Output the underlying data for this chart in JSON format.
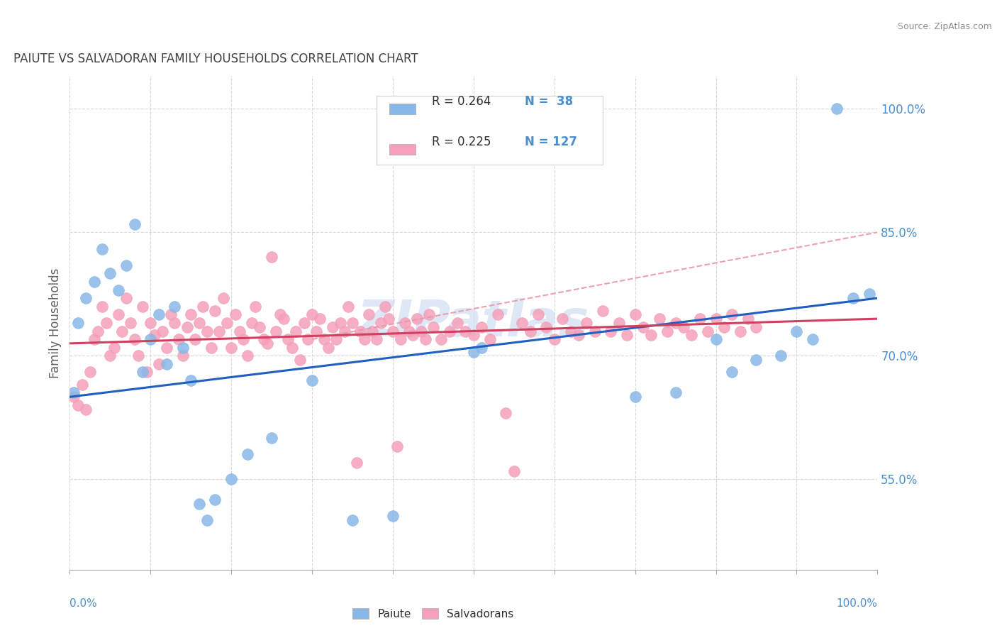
{
  "title": "PAIUTE VS SALVADORAN FAMILY HOUSEHOLDS CORRELATION CHART",
  "source": "Source: ZipAtlas.com",
  "ylabel": "Family Households",
  "yaxis_ticks": [
    55.0,
    70.0,
    85.0,
    100.0
  ],
  "xaxis_range": [
    0.0,
    100.0
  ],
  "yaxis_range": [
    44.0,
    104.0
  ],
  "watermark": "ZIPatlas",
  "paiute_color": "#88b8e8",
  "paiute_edge_color": "#88b8e8",
  "salvadoran_color": "#f4a0b8",
  "salvadoran_edge_color": "#f4a0b8",
  "paiute_line_color": "#2060c0",
  "salvadoran_line_color": "#d04060",
  "dashed_line_color": "#e898a8",
  "background_color": "#ffffff",
  "grid_color": "#d8d8d8",
  "title_color": "#404040",
  "source_color": "#909090",
  "axis_tick_color": "#4a90d0",
  "ylabel_color": "#606060",
  "watermark_color": "#c8d8f0",
  "legend_R_color": "#303030",
  "legend_N_color": "#4a90d0",
  "paiute_scatter": [
    [
      0.5,
      65.5
    ],
    [
      1.0,
      74.0
    ],
    [
      2.0,
      77.0
    ],
    [
      3.0,
      79.0
    ],
    [
      4.0,
      83.0
    ],
    [
      5.0,
      80.0
    ],
    [
      6.0,
      78.0
    ],
    [
      7.0,
      81.0
    ],
    [
      8.0,
      86.0
    ],
    [
      9.0,
      68.0
    ],
    [
      10.0,
      72.0
    ],
    [
      11.0,
      75.0
    ],
    [
      12.0,
      69.0
    ],
    [
      13.0,
      76.0
    ],
    [
      14.0,
      71.0
    ],
    [
      15.0,
      67.0
    ],
    [
      16.0,
      52.0
    ],
    [
      17.0,
      50.0
    ],
    [
      18.0,
      52.5
    ],
    [
      20.0,
      55.0
    ],
    [
      22.0,
      58.0
    ],
    [
      25.0,
      60.0
    ],
    [
      30.0,
      67.0
    ],
    [
      35.0,
      50.0
    ],
    [
      40.0,
      50.5
    ],
    [
      50.0,
      70.5
    ],
    [
      51.0,
      71.0
    ],
    [
      70.0,
      65.0
    ],
    [
      75.0,
      65.5
    ],
    [
      80.0,
      72.0
    ],
    [
      82.0,
      68.0
    ],
    [
      85.0,
      69.5
    ],
    [
      88.0,
      70.0
    ],
    [
      90.0,
      73.0
    ],
    [
      92.0,
      72.0
    ],
    [
      95.0,
      100.0
    ],
    [
      97.0,
      77.0
    ],
    [
      99.0,
      77.5
    ]
  ],
  "salvadoran_scatter": [
    [
      0.5,
      65.0
    ],
    [
      1.0,
      64.0
    ],
    [
      1.5,
      66.5
    ],
    [
      2.0,
      63.5
    ],
    [
      2.5,
      68.0
    ],
    [
      3.0,
      72.0
    ],
    [
      3.5,
      73.0
    ],
    [
      4.0,
      76.0
    ],
    [
      4.5,
      74.0
    ],
    [
      5.0,
      70.0
    ],
    [
      5.5,
      71.0
    ],
    [
      6.0,
      75.0
    ],
    [
      6.5,
      73.0
    ],
    [
      7.0,
      77.0
    ],
    [
      7.5,
      74.0
    ],
    [
      8.0,
      72.0
    ],
    [
      8.5,
      70.0
    ],
    [
      9.0,
      76.0
    ],
    [
      9.5,
      68.0
    ],
    [
      10.0,
      74.0
    ],
    [
      10.5,
      72.5
    ],
    [
      11.0,
      69.0
    ],
    [
      11.5,
      73.0
    ],
    [
      12.0,
      71.0
    ],
    [
      12.5,
      75.0
    ],
    [
      13.0,
      74.0
    ],
    [
      13.5,
      72.0
    ],
    [
      14.0,
      70.0
    ],
    [
      14.5,
      73.5
    ],
    [
      15.0,
      75.0
    ],
    [
      15.5,
      72.0
    ],
    [
      16.0,
      74.0
    ],
    [
      16.5,
      76.0
    ],
    [
      17.0,
      73.0
    ],
    [
      17.5,
      71.0
    ],
    [
      18.0,
      75.5
    ],
    [
      18.5,
      73.0
    ],
    [
      19.0,
      77.0
    ],
    [
      19.5,
      74.0
    ],
    [
      20.0,
      71.0
    ],
    [
      20.5,
      75.0
    ],
    [
      21.0,
      73.0
    ],
    [
      21.5,
      72.0
    ],
    [
      22.0,
      70.0
    ],
    [
      22.5,
      74.0
    ],
    [
      23.0,
      76.0
    ],
    [
      23.5,
      73.5
    ],
    [
      24.0,
      72.0
    ],
    [
      24.5,
      71.5
    ],
    [
      25.0,
      82.0
    ],
    [
      25.5,
      73.0
    ],
    [
      26.0,
      75.0
    ],
    [
      26.5,
      74.5
    ],
    [
      27.0,
      72.0
    ],
    [
      27.5,
      71.0
    ],
    [
      28.0,
      73.0
    ],
    [
      28.5,
      69.5
    ],
    [
      29.0,
      74.0
    ],
    [
      29.5,
      72.0
    ],
    [
      30.0,
      75.0
    ],
    [
      30.5,
      73.0
    ],
    [
      31.0,
      74.5
    ],
    [
      31.5,
      72.0
    ],
    [
      32.0,
      71.0
    ],
    [
      32.5,
      73.5
    ],
    [
      33.0,
      72.0
    ],
    [
      33.5,
      74.0
    ],
    [
      34.0,
      73.0
    ],
    [
      34.5,
      76.0
    ],
    [
      35.0,
      74.0
    ],
    [
      35.5,
      57.0
    ],
    [
      36.0,
      73.0
    ],
    [
      36.5,
      72.0
    ],
    [
      37.0,
      75.0
    ],
    [
      37.5,
      73.0
    ],
    [
      38.0,
      72.0
    ],
    [
      38.5,
      74.0
    ],
    [
      39.0,
      76.0
    ],
    [
      39.5,
      74.5
    ],
    [
      40.0,
      73.0
    ],
    [
      40.5,
      59.0
    ],
    [
      41.0,
      72.0
    ],
    [
      41.5,
      74.0
    ],
    [
      42.0,
      73.0
    ],
    [
      42.5,
      72.5
    ],
    [
      43.0,
      74.5
    ],
    [
      43.5,
      73.0
    ],
    [
      44.0,
      72.0
    ],
    [
      44.5,
      75.0
    ],
    [
      45.0,
      73.5
    ],
    [
      46.0,
      72.0
    ],
    [
      47.0,
      73.0
    ],
    [
      48.0,
      74.0
    ],
    [
      49.0,
      73.0
    ],
    [
      50.0,
      72.5
    ],
    [
      51.0,
      73.5
    ],
    [
      52.0,
      72.0
    ],
    [
      53.0,
      75.0
    ],
    [
      54.0,
      63.0
    ],
    [
      55.0,
      56.0
    ],
    [
      56.0,
      74.0
    ],
    [
      57.0,
      73.0
    ],
    [
      58.0,
      75.0
    ],
    [
      59.0,
      73.5
    ],
    [
      60.0,
      72.0
    ],
    [
      61.0,
      74.5
    ],
    [
      62.0,
      73.0
    ],
    [
      63.0,
      72.5
    ],
    [
      64.0,
      74.0
    ],
    [
      65.0,
      73.0
    ],
    [
      66.0,
      75.5
    ],
    [
      67.0,
      73.0
    ],
    [
      68.0,
      74.0
    ],
    [
      69.0,
      72.5
    ],
    [
      70.0,
      75.0
    ],
    [
      71.0,
      73.5
    ],
    [
      72.0,
      72.5
    ],
    [
      73.0,
      74.5
    ],
    [
      74.0,
      73.0
    ],
    [
      75.0,
      74.0
    ],
    [
      76.0,
      73.5
    ],
    [
      77.0,
      72.5
    ],
    [
      78.0,
      74.5
    ],
    [
      79.0,
      73.0
    ],
    [
      80.0,
      74.5
    ],
    [
      81.0,
      73.5
    ],
    [
      82.0,
      75.0
    ],
    [
      83.0,
      73.0
    ],
    [
      84.0,
      74.5
    ],
    [
      85.0,
      73.5
    ]
  ],
  "paiute_trend": [
    0.0,
    65.0,
    100.0,
    77.0
  ],
  "salvadoran_trend": [
    0.0,
    71.5,
    100.0,
    74.5
  ],
  "dashed_trend": [
    30.0,
    72.0,
    100.0,
    85.0
  ]
}
